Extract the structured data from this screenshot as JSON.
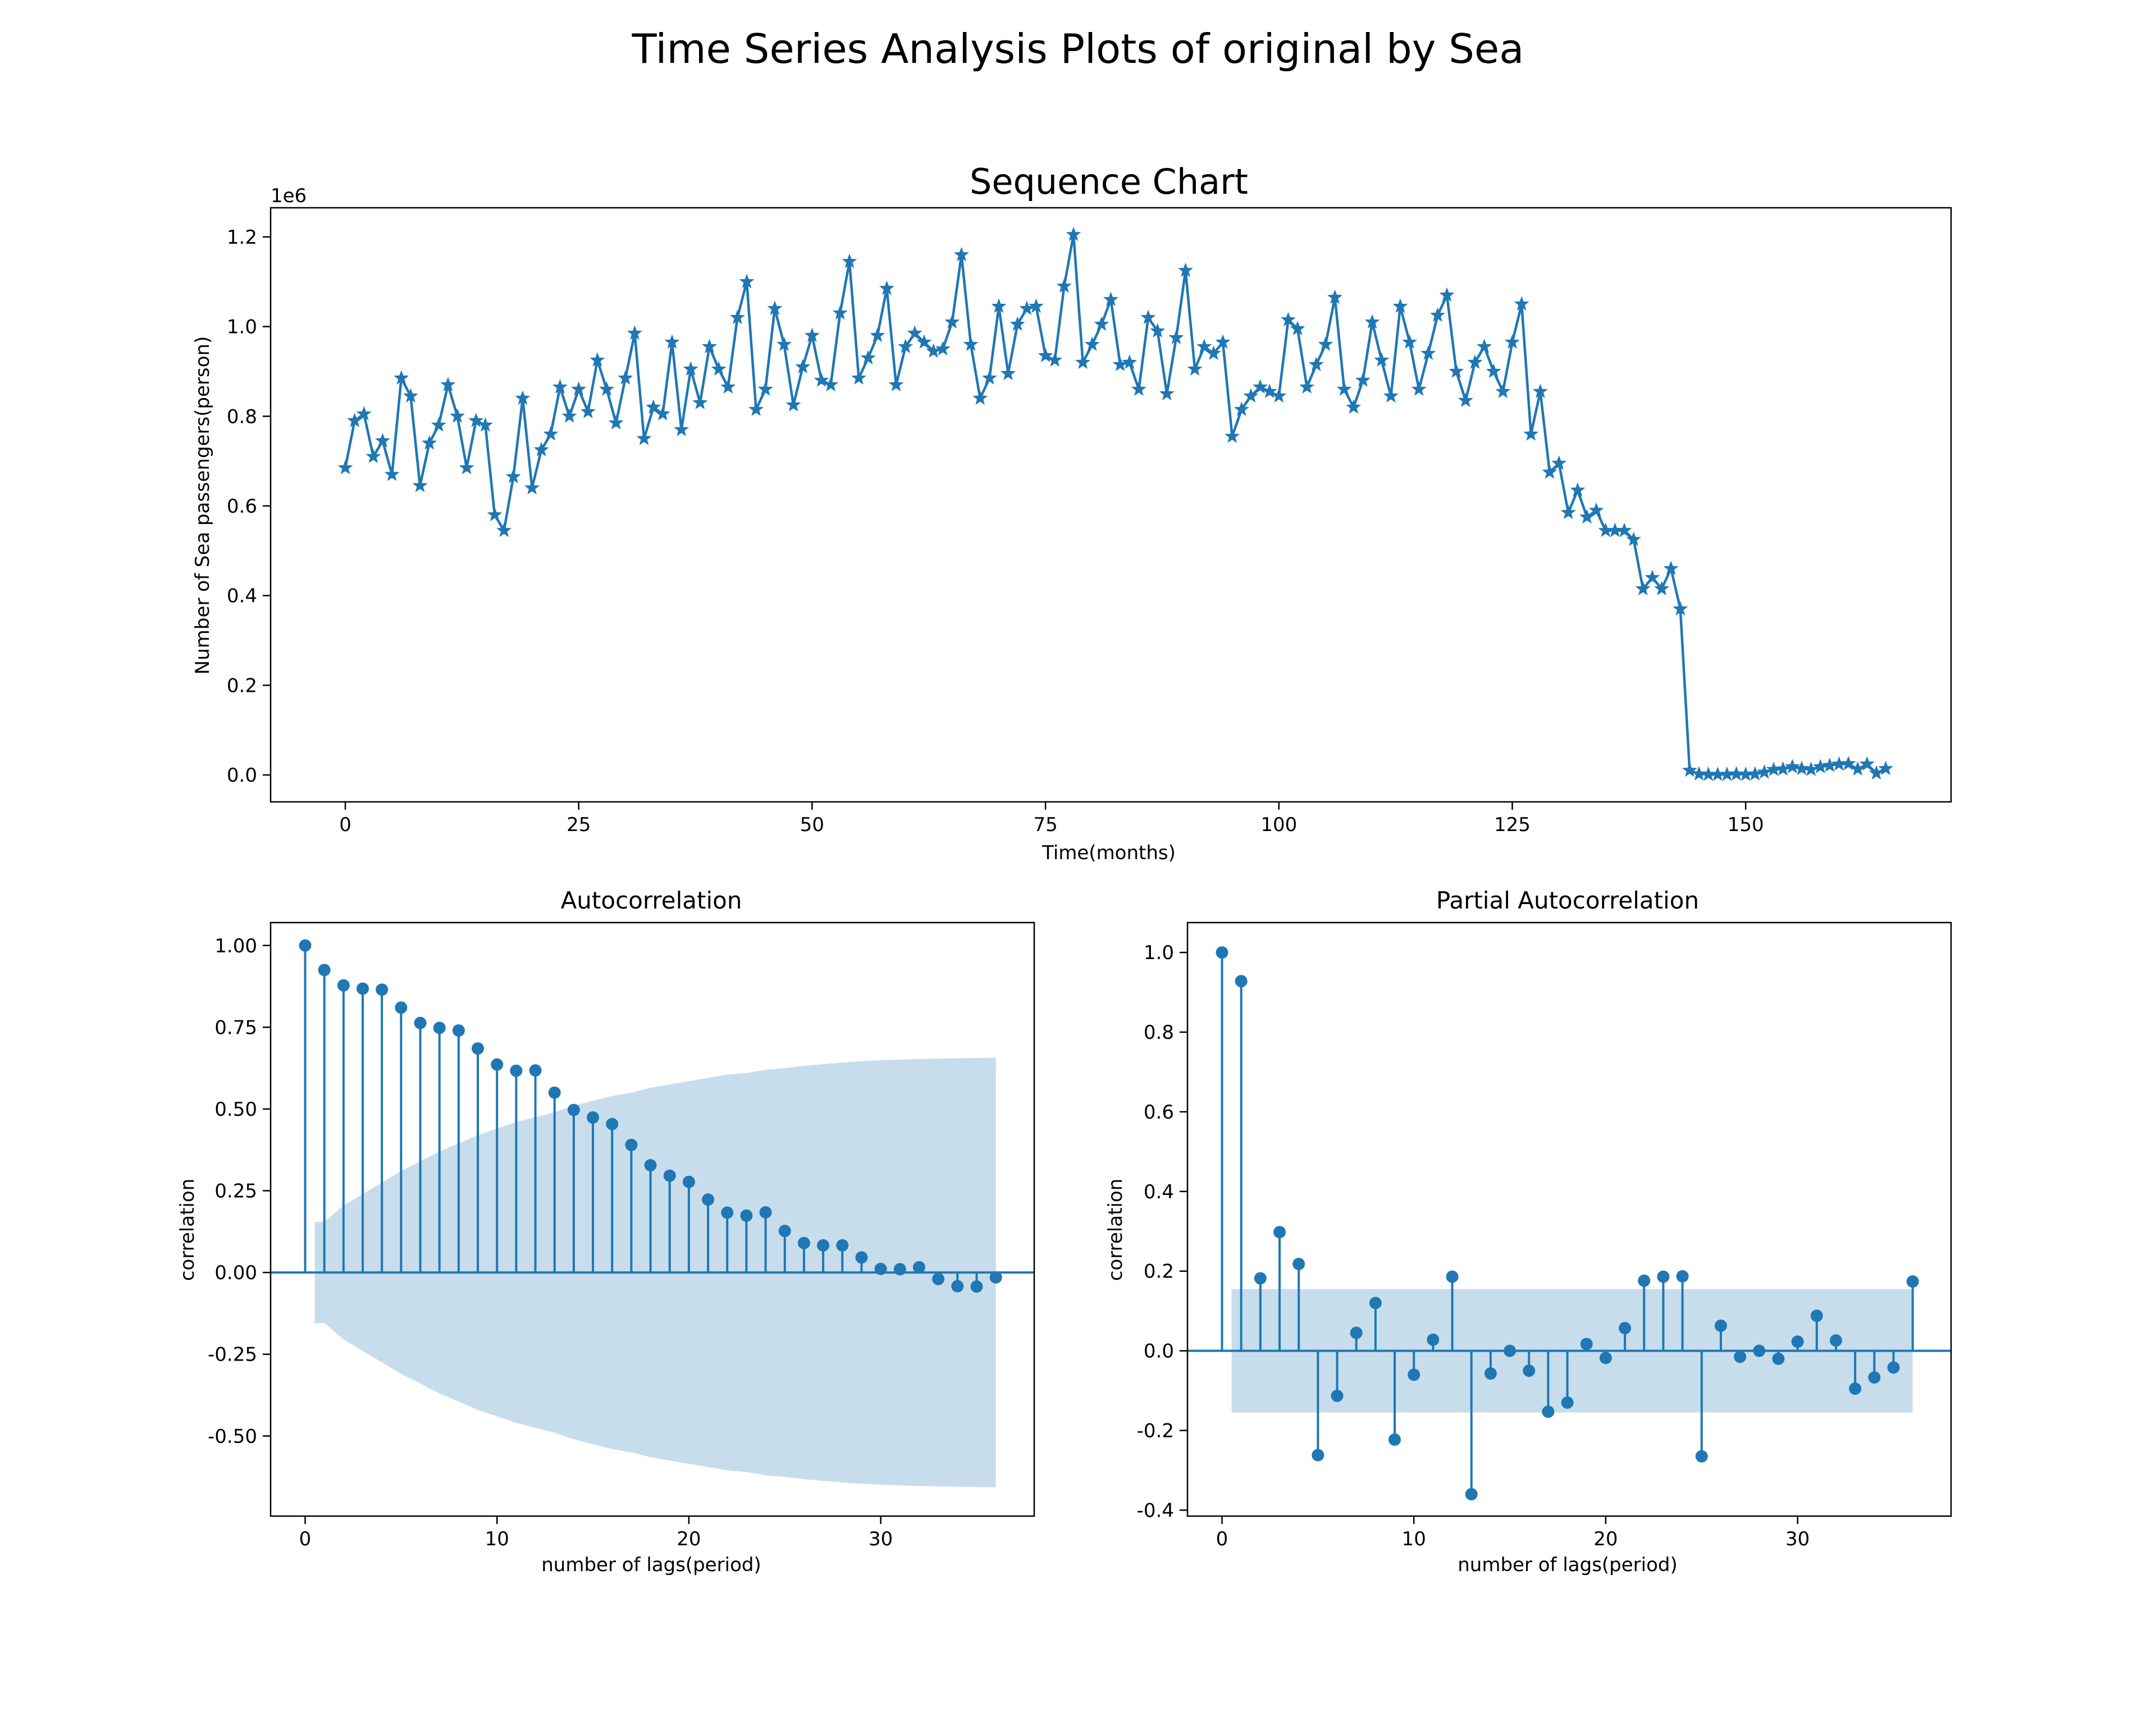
{
  "figure": {
    "suptitle": "Time Series Analysis Plots of original by Sea"
  },
  "colors": {
    "series": "#1f77b4",
    "confband": "#1f77b4",
    "axes": "#000000",
    "background": "#ffffff"
  },
  "chart_data": [
    {
      "type": "line",
      "title": "Sequence Chart",
      "xlabel": "Time(months)",
      "ylabel": "Number of Sea passengers(person)",
      "y_offset_label": "1e6",
      "marker": "star",
      "xlim": [
        -8,
        172
      ],
      "ylim": [
        -0.06,
        1.265
      ],
      "xticks": [
        0,
        25,
        50,
        75,
        100,
        125,
        150
      ],
      "yticks": [
        0.0,
        0.2,
        0.4,
        0.6,
        0.8,
        1.0,
        1.2
      ],
      "ytick_labels": [
        "0.0",
        "0.2",
        "0.4",
        "0.6",
        "0.8",
        "1.0",
        "1.2"
      ],
      "x_start": 0,
      "values": [
        0.685,
        0.79,
        0.805,
        0.71,
        0.745,
        0.67,
        0.885,
        0.845,
        0.645,
        0.74,
        0.78,
        0.87,
        0.8,
        0.685,
        0.79,
        0.78,
        0.58,
        0.545,
        0.665,
        0.84,
        0.64,
        0.725,
        0.76,
        0.865,
        0.8,
        0.86,
        0.81,
        0.925,
        0.86,
        0.785,
        0.885,
        0.985,
        0.75,
        0.82,
        0.805,
        0.965,
        0.77,
        0.905,
        0.83,
        0.955,
        0.905,
        0.865,
        1.02,
        1.1,
        0.815,
        0.86,
        1.04,
        0.96,
        0.825,
        0.91,
        0.98,
        0.88,
        0.87,
        1.03,
        1.145,
        0.885,
        0.93,
        0.98,
        1.085,
        0.87,
        0.955,
        0.985,
        0.965,
        0.945,
        0.95,
        1.01,
        1.16,
        0.96,
        0.84,
        0.885,
        1.045,
        0.895,
        1.005,
        1.04,
        1.045,
        0.935,
        0.925,
        1.09,
        1.205,
        0.92,
        0.96,
        1.005,
        1.06,
        0.915,
        0.92,
        0.86,
        1.02,
        0.99,
        0.85,
        0.975,
        1.125,
        0.905,
        0.955,
        0.94,
        0.965,
        0.755,
        0.815,
        0.845,
        0.865,
        0.855,
        0.845,
        1.015,
        0.995,
        0.865,
        0.915,
        0.96,
        1.065,
        0.86,
        0.82,
        0.88,
        1.01,
        0.925,
        0.845,
        1.045,
        0.965,
        0.86,
        0.94,
        1.025,
        1.07,
        0.9,
        0.835,
        0.92,
        0.955,
        0.9,
        0.855,
        0.965,
        1.05,
        0.76,
        0.855,
        0.675,
        0.695,
        0.585,
        0.635,
        0.575,
        0.59,
        0.545,
        0.545,
        0.545,
        0.525,
        0.415,
        0.44,
        0.415,
        0.46,
        0.37,
        0.01,
        0.002,
        0.001,
        0.001,
        0.001,
        0.002,
        0.001,
        0.002,
        0.006,
        0.012,
        0.013,
        0.018,
        0.014,
        0.012,
        0.018,
        0.021,
        0.024,
        0.025,
        0.013,
        0.024,
        0.004,
        0.014
      ]
    },
    {
      "type": "stem",
      "title": "Autocorrelation",
      "xlabel": "number of lags(period)",
      "ylabel": "correlation",
      "xlim": [
        -1.8,
        38.0
      ],
      "ylim": [
        -0.745,
        1.07
      ],
      "xticks": [
        0,
        10,
        20,
        30
      ],
      "yticks": [
        -0.5,
        -0.25,
        0.0,
        0.25,
        0.5,
        0.75,
        1.0
      ],
      "ytick_labels": [
        "-0.50",
        "-0.25",
        "0.00",
        "0.25",
        "0.50",
        "0.75",
        "1.00"
      ],
      "lags": [
        0,
        1,
        2,
        3,
        4,
        5,
        6,
        7,
        8,
        9,
        10,
        11,
        12,
        13,
        14,
        15,
        16,
        17,
        18,
        19,
        20,
        21,
        22,
        23,
        24,
        25,
        26,
        27,
        28,
        29,
        30,
        31,
        32,
        33,
        34,
        35,
        36
      ],
      "values": [
        1.0,
        0.925,
        0.878,
        0.868,
        0.865,
        0.81,
        0.763,
        0.748,
        0.74,
        0.685,
        0.636,
        0.617,
        0.618,
        0.55,
        0.497,
        0.474,
        0.454,
        0.39,
        0.328,
        0.296,
        0.277,
        0.223,
        0.183,
        0.174,
        0.184,
        0.127,
        0.09,
        0.083,
        0.083,
        0.046,
        0.011,
        0.01,
        0.016,
        -0.02,
        -0.042,
        -0.043,
        -0.015
      ],
      "conf_band": [
        0.0,
        0.155,
        0.205,
        0.24,
        0.275,
        0.31,
        0.34,
        0.37,
        0.395,
        0.42,
        0.44,
        0.46,
        0.475,
        0.49,
        0.51,
        0.525,
        0.54,
        0.55,
        0.565,
        0.575,
        0.585,
        0.595,
        0.605,
        0.61,
        0.62,
        0.625,
        0.632,
        0.637,
        0.642,
        0.646,
        0.649,
        0.651,
        0.653,
        0.654,
        0.655,
        0.656,
        0.657
      ]
    },
    {
      "type": "stem",
      "title": "Partial Autocorrelation",
      "xlabel": "number of lags(period)",
      "ylabel": "correlation",
      "xlim": [
        -1.8,
        38.0
      ],
      "ylim": [
        -0.415,
        1.075
      ],
      "xticks": [
        0,
        10,
        20,
        30
      ],
      "yticks": [
        -0.4,
        -0.2,
        0.0,
        0.2,
        0.4,
        0.6,
        0.8,
        1.0
      ],
      "ytick_labels": [
        "-0.4",
        "-0.2",
        "0.0",
        "0.2",
        "0.4",
        "0.6",
        "0.8",
        "1.0"
      ],
      "lags": [
        0,
        1,
        2,
        3,
        4,
        5,
        6,
        7,
        8,
        9,
        10,
        11,
        12,
        13,
        14,
        15,
        16,
        17,
        18,
        19,
        20,
        21,
        22,
        23,
        24,
        25,
        26,
        27,
        28,
        29,
        30,
        31,
        32,
        33,
        34,
        35,
        36
      ],
      "values": [
        1.0,
        0.928,
        0.182,
        0.298,
        0.218,
        -0.262,
        -0.113,
        0.045,
        0.12,
        -0.223,
        -0.06,
        0.028,
        0.186,
        -0.36,
        -0.057,
        0.0,
        -0.05,
        -0.153,
        -0.13,
        0.017,
        -0.018,
        0.057,
        0.176,
        0.186,
        0.187,
        -0.265,
        0.063,
        -0.015,
        0.0,
        -0.02,
        0.023,
        0.088,
        0.026,
        -0.095,
        -0.067,
        -0.042,
        0.174
      ],
      "conf_band": [
        0.155,
        0.155,
        0.155,
        0.155,
        0.155,
        0.155,
        0.155,
        0.155,
        0.155,
        0.155,
        0.155,
        0.155,
        0.155,
        0.155,
        0.155,
        0.155,
        0.155,
        0.155,
        0.155,
        0.155,
        0.155,
        0.155,
        0.155,
        0.155,
        0.155,
        0.155,
        0.155,
        0.155,
        0.155,
        0.155,
        0.155,
        0.155,
        0.155,
        0.155,
        0.155,
        0.155,
        0.155
      ]
    }
  ]
}
